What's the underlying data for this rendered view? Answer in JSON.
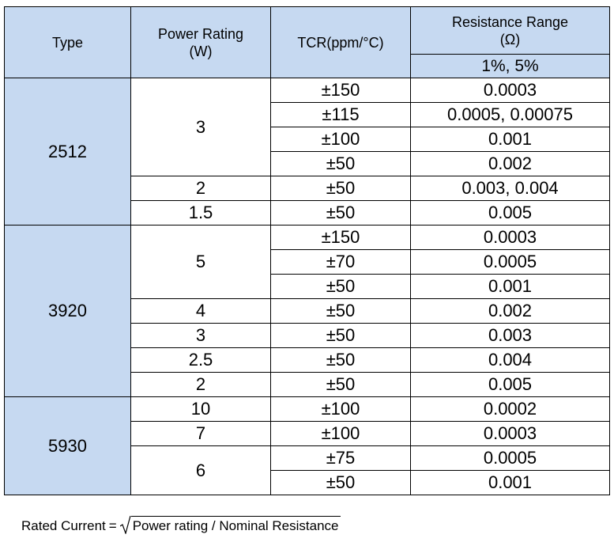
{
  "header": {
    "type": "Type",
    "power_line1": "Power Rating",
    "power_line2": "(W)",
    "tcr": "TCR(ppm/°C)",
    "resistance_line1": "Resistance Range",
    "resistance_line2": "(Ω)",
    "tolerance": "1%, 5%"
  },
  "groups": [
    {
      "type": "2512",
      "rows": [
        {
          "power": "3",
          "tcr": "±150",
          "res": "0.0003"
        },
        {
          "tcr": "±115",
          "res": "0.0005, 0.00075"
        },
        {
          "tcr": "±100",
          "res": "0.001"
        },
        {
          "tcr": "±50",
          "res": "0.002"
        },
        {
          "power": "2",
          "tcr": "±50",
          "res": "0.003, 0.004"
        },
        {
          "power": "1.5",
          "tcr": "±50",
          "res": "0.005"
        }
      ]
    },
    {
      "type": "3920",
      "rows": [
        {
          "power": "5",
          "tcr": "±150",
          "res": "0.0003"
        },
        {
          "tcr": "±70",
          "res": "0.0005"
        },
        {
          "tcr": "±50",
          "res": "0.001"
        },
        {
          "power": "4",
          "tcr": "±50",
          "res": "0.002"
        },
        {
          "power": "3",
          "tcr": "±50",
          "res": "0.003"
        },
        {
          "power": "2.5",
          "tcr": "±50",
          "res": "0.004"
        },
        {
          "power": "2",
          "tcr": "±50",
          "res": "0.005"
        }
      ]
    },
    {
      "type": "5930",
      "rows": [
        {
          "power": "10",
          "tcr": "±100",
          "res": "0.0002"
        },
        {
          "power": "7",
          "tcr": "±100",
          "res": "0.0003"
        },
        {
          "power": "6",
          "tcr": "±75",
          "res": "0.0005"
        },
        {
          "tcr": "±50",
          "res": "0.001"
        }
      ]
    }
  ],
  "formula": {
    "lhs": "Rated Current",
    "eq": "=",
    "radicand": "Power rating / Nominal Resistance"
  }
}
